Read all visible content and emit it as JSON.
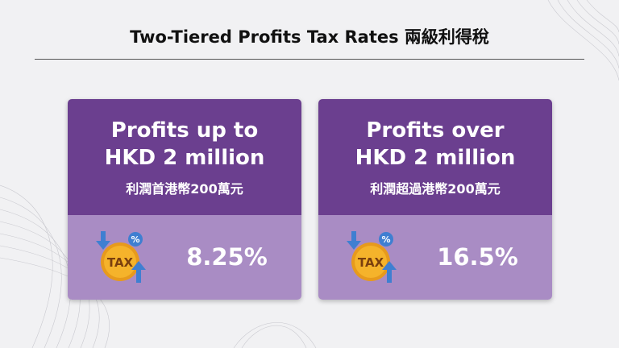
{
  "title": "Two-Tiered Profits Tax Rates 兩級利得稅",
  "cards": [
    {
      "heading": "Profits up to\nHKD 2 million",
      "subheading": "利潤首港幣200萬元",
      "icon": "tax-coin-icon",
      "icon_text": "TAX",
      "rate": "8.25%"
    },
    {
      "heading": "Profits over\nHKD 2 million",
      "subheading": "利潤超過港幣200萬元",
      "icon": "tax-coin-icon",
      "icon_text": "TAX",
      "rate": "16.5%"
    }
  ],
  "colors": {
    "background": "#f1f1f3",
    "card_top": "#6b3f8f",
    "card_bottom": "#a98cc4",
    "coin": "#f5b32b",
    "arrow": "#3f7fd1"
  }
}
